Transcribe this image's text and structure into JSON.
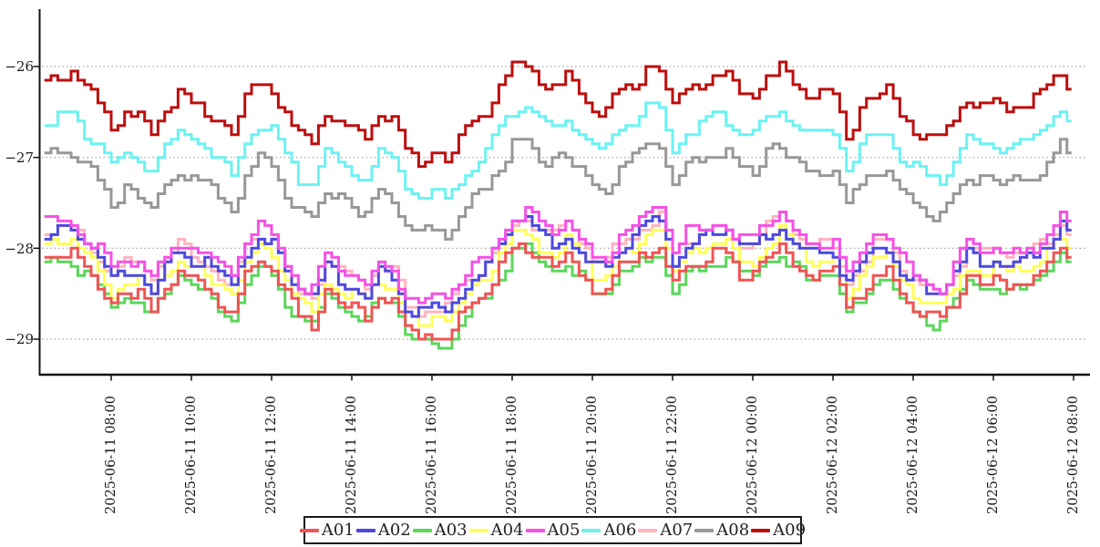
{
  "chart_data": {
    "type": "line",
    "title": "",
    "line_style": "step",
    "line_width": 3,
    "grid": "dotted-horizontal",
    "legend_position": "bottom-center",
    "x_start": "2025-06-11 06:20",
    "x_end": "2025-06-12 07:50",
    "sample_interval_minutes": 10,
    "base_interval_minutes": 20,
    "sample_count": 154,
    "quantize_step": 0.05,
    "ylim": [
      -29.4,
      -25.6
    ],
    "y_ticks": [
      -26,
      -27,
      -28,
      -29
    ],
    "y_tick_labels": [
      "−26",
      "−27",
      "−28",
      "−29"
    ],
    "x_tick_labels": [
      "2025-06-11 08:00",
      "2025-06-11 10:00",
      "2025-06-11 12:00",
      "2025-06-11 14:00",
      "2025-06-11 16:00",
      "2025-06-11 18:00",
      "2025-06-11 20:00",
      "2025-06-11 22:00",
      "2025-06-12 00:00",
      "2025-06-12 02:00",
      "2025-06-12 04:00",
      "2025-06-12 06:00",
      "2025-06-12 08:00"
    ],
    "base_values_20min": [
      -26.15,
      -26.1,
      -26.1,
      -26.28,
      -26.42,
      -26.65,
      -26.5,
      -26.56,
      -26.75,
      -26.45,
      -26.33,
      -26.42,
      -26.48,
      -26.62,
      -26.72,
      -26.35,
      -26.18,
      -26.25,
      -26.55,
      -26.8,
      -26.85,
      -26.5,
      -26.6,
      -26.7,
      -26.82,
      -26.52,
      -26.62,
      -26.95,
      -27.03,
      -26.97,
      -27.0,
      -26.8,
      -26.62,
      -26.5,
      -26.25,
      -26.05,
      -26.0,
      -26.15,
      -26.2,
      -26.12,
      -26.32,
      -26.48,
      -26.5,
      -26.28,
      -26.2,
      -26.05,
      -26.0,
      -26.45,
      -26.25,
      -26.2,
      -26.12,
      -26.13,
      -26.3,
      -26.3,
      -26.1,
      -26.02,
      -26.22,
      -26.3,
      -26.33,
      -26.33,
      -26.72,
      -26.5,
      -26.3,
      -26.28,
      -26.55,
      -26.68,
      -26.78,
      -26.82,
      -26.6,
      -26.35,
      -26.4,
      -26.4,
      -26.48,
      -26.4,
      -26.38,
      -26.25,
      -26.05,
      -26.3,
      -26.45
    ],
    "jitter_pattern": [
      0,
      -0.05,
      0.04,
      0.08,
      0.02,
      -0.06,
      -0.02,
      0.05,
      0,
      -0.04,
      0.07,
      0.03,
      -0.07,
      0.04,
      -0.03,
      0.06
    ],
    "series": [
      {
        "name": "A01",
        "color": "#f05454",
        "offset": -1.97,
        "phase": 8,
        "stride": 1,
        "z": 3
      },
      {
        "name": "A02",
        "color": "#4d49e0",
        "offset": -1.71,
        "phase": 14,
        "stride": 5,
        "z": 4
      },
      {
        "name": "A03",
        "color": "#5bd75b",
        "offset": -2.03,
        "phase": 11,
        "stride": 5,
        "z": 1
      },
      {
        "name": "A04",
        "color": "#ffff5a",
        "offset": -1.82,
        "phase": 2,
        "stride": 7,
        "z": 2
      },
      {
        "name": "A05",
        "color": "#f551e5",
        "offset": -1.6,
        "phase": 3,
        "stride": 3,
        "z": 5
      },
      {
        "name": "A06",
        "color": "#6cf2f2",
        "offset": -0.44,
        "phase": 12,
        "stride": 3,
        "z": 7
      },
      {
        "name": "A07",
        "color": "#ffb3be",
        "offset": -1.66,
        "phase": 5,
        "stride": 3,
        "z": 0
      },
      {
        "name": "A08",
        "color": "#989898",
        "offset": -0.84,
        "phase": 7,
        "stride": 1,
        "z": 6
      },
      {
        "name": "A09",
        "color": "#bd0e0e",
        "offset": 0,
        "phase": 0,
        "stride": 1,
        "z": 8
      }
    ]
  }
}
